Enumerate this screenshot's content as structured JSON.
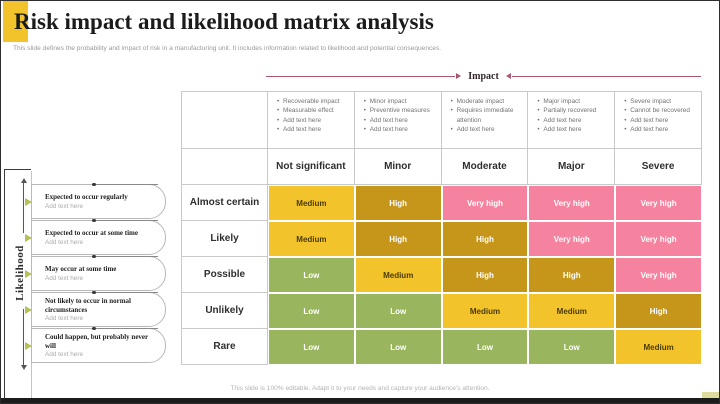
{
  "slide": {
    "title": "Risk impact and likelihood matrix analysis",
    "subtitle": "This slide defines the probability and impact of risk in a manufacturing unit. It includes information related to likelihood and potential consequences.",
    "footer": "This slide is 100% editable. Adapt it to your needs and capture your audience's attention."
  },
  "axes": {
    "impact_label": "Impact",
    "likelihood_label": "Likelihood"
  },
  "likelihood_items": [
    {
      "title": "Expected to occur regularly",
      "subtitle": "Add text here"
    },
    {
      "title": "Expected to occur at some time",
      "subtitle": "Add text here"
    },
    {
      "title": "May occur at some time",
      "subtitle": "Add text here"
    },
    {
      "title": "Not likely to occur in normal circumstances",
      "subtitle": "Add text here"
    },
    {
      "title": "Could happen, but probably never will",
      "subtitle": "Add text here"
    }
  ],
  "impact_columns": [
    {
      "header": "Not significant",
      "bullets": [
        "Recoverable impact",
        "Measurable effect",
        "Add text here",
        "Add text here"
      ]
    },
    {
      "header": "Minor",
      "bullets": [
        "Minor impact",
        "Preventive measures",
        "Add text here",
        "Add text here"
      ]
    },
    {
      "header": "Moderate",
      "bullets": [
        "Moderate impact",
        "Requires immediate attention",
        "Add text here"
      ]
    },
    {
      "header": "Major",
      "bullets": [
        "Major impact",
        "Partially recovered",
        "Add text here",
        "Add text here"
      ]
    },
    {
      "header": "Severe",
      "bullets": [
        "Severe impact",
        "Cannot be recovered",
        "Add text here",
        "Add text here"
      ]
    }
  ],
  "matrix": {
    "row_headers": [
      "Almost certain",
      "Likely",
      "Possible",
      "Unlikely",
      "Rare"
    ],
    "cells": [
      [
        "Medium",
        "High",
        "Very high",
        "Very high",
        "Very high"
      ],
      [
        "Medium",
        "High",
        "High",
        "Very high",
        "Very high"
      ],
      [
        "Low",
        "Medium",
        "High",
        "High",
        "Very high"
      ],
      [
        "Low",
        "Low",
        "Medium",
        "Medium",
        "High"
      ],
      [
        "Low",
        "Low",
        "Low",
        "Low",
        "Medium"
      ]
    ]
  },
  "levels": {
    "Low": {
      "bg": "#99B55E",
      "fg": "#FFFFFF"
    },
    "Medium": {
      "bg": "#F3C32B",
      "fg": "#4A3B05"
    },
    "High": {
      "bg": "#C6961A",
      "fg": "#FFFFFF"
    },
    "Very high": {
      "bg": "#F5839F",
      "fg": "#FFFFFF"
    }
  },
  "colors": {
    "accent_yellow": "#F3C32B",
    "impact_line": "#A8566F",
    "marker_green": "#B5BF54"
  }
}
